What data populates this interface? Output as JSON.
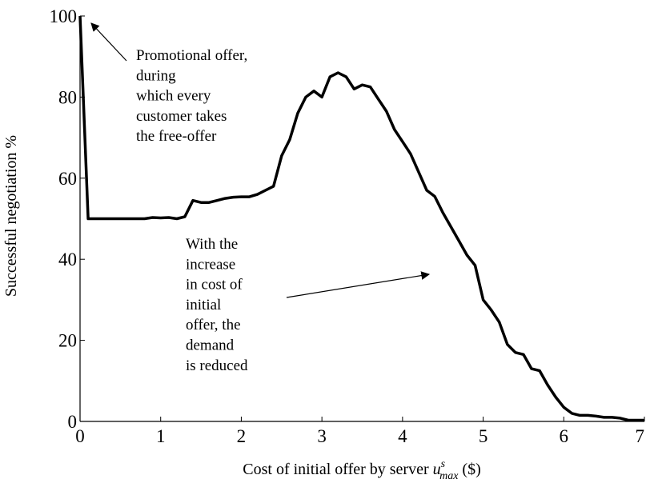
{
  "chart_data": {
    "type": "line",
    "x": [
      0,
      0.1,
      0.2,
      0.3,
      0.4,
      0.5,
      0.6,
      0.7,
      0.8,
      0.9,
      1.0,
      1.1,
      1.2,
      1.3,
      1.4,
      1.5,
      1.6,
      1.7,
      1.8,
      1.9,
      2.0,
      2.1,
      2.2,
      2.3,
      2.4,
      2.5,
      2.6,
      2.7,
      2.8,
      2.9,
      3.0,
      3.1,
      3.2,
      3.3,
      3.4,
      3.5,
      3.6,
      3.7,
      3.8,
      3.9,
      4.0,
      4.1,
      4.2,
      4.3,
      4.4,
      4.5,
      4.6,
      4.7,
      4.8,
      4.9,
      5.0,
      5.1,
      5.2,
      5.3,
      5.4,
      5.5,
      5.6,
      5.7,
      5.8,
      5.9,
      6.0,
      6.1,
      6.2,
      6.3,
      6.4,
      6.5,
      6.6,
      6.7,
      6.8,
      6.9,
      7.0
    ],
    "values": [
      100,
      50,
      50,
      50,
      50,
      50,
      50,
      50,
      50,
      50.3,
      50.2,
      50.3,
      50,
      50.5,
      54.5,
      54,
      54,
      54.5,
      55,
      55.3,
      55.4,
      55.4,
      56,
      57,
      58,
      65.5,
      69.5,
      76,
      80,
      81.5,
      80,
      85,
      86,
      85,
      82,
      83,
      82.5,
      79.5,
      76.5,
      72,
      69,
      66,
      61.5,
      57,
      55.5,
      51.5,
      48,
      44.5,
      41,
      38.5,
      30,
      27.5,
      24.5,
      19,
      17,
      16.5,
      13,
      12.5,
      9,
      6,
      3.5,
      2,
      1.5,
      1.5,
      1.3,
      1,
      1,
      0.8,
      0.3,
      0.3,
      0.3
    ],
    "color": "#000000",
    "xlim": [
      0,
      7
    ],
    "xticks": [
      0,
      1,
      2,
      3,
      4,
      5,
      6,
      7
    ],
    "ylim": [
      0,
      100
    ],
    "yticks": [
      0,
      20,
      40,
      60,
      80,
      100
    ],
    "ylabel": "Successful negotiation %",
    "xlabel": {
      "prefix": "Cost of initial offer by server",
      "variable": "u",
      "superscript": "s",
      "subscript": "max",
      "suffix": "($)"
    },
    "annotations": [
      {
        "lines": [
          "Promotional offer,",
          "during",
          "which every",
          "customer takes",
          "the free-offer"
        ]
      },
      {
        "lines": [
          "With the",
          "increase",
          "in cost of",
          "initial",
          "offer, the",
          "demand",
          "is reduced"
        ]
      }
    ]
  }
}
